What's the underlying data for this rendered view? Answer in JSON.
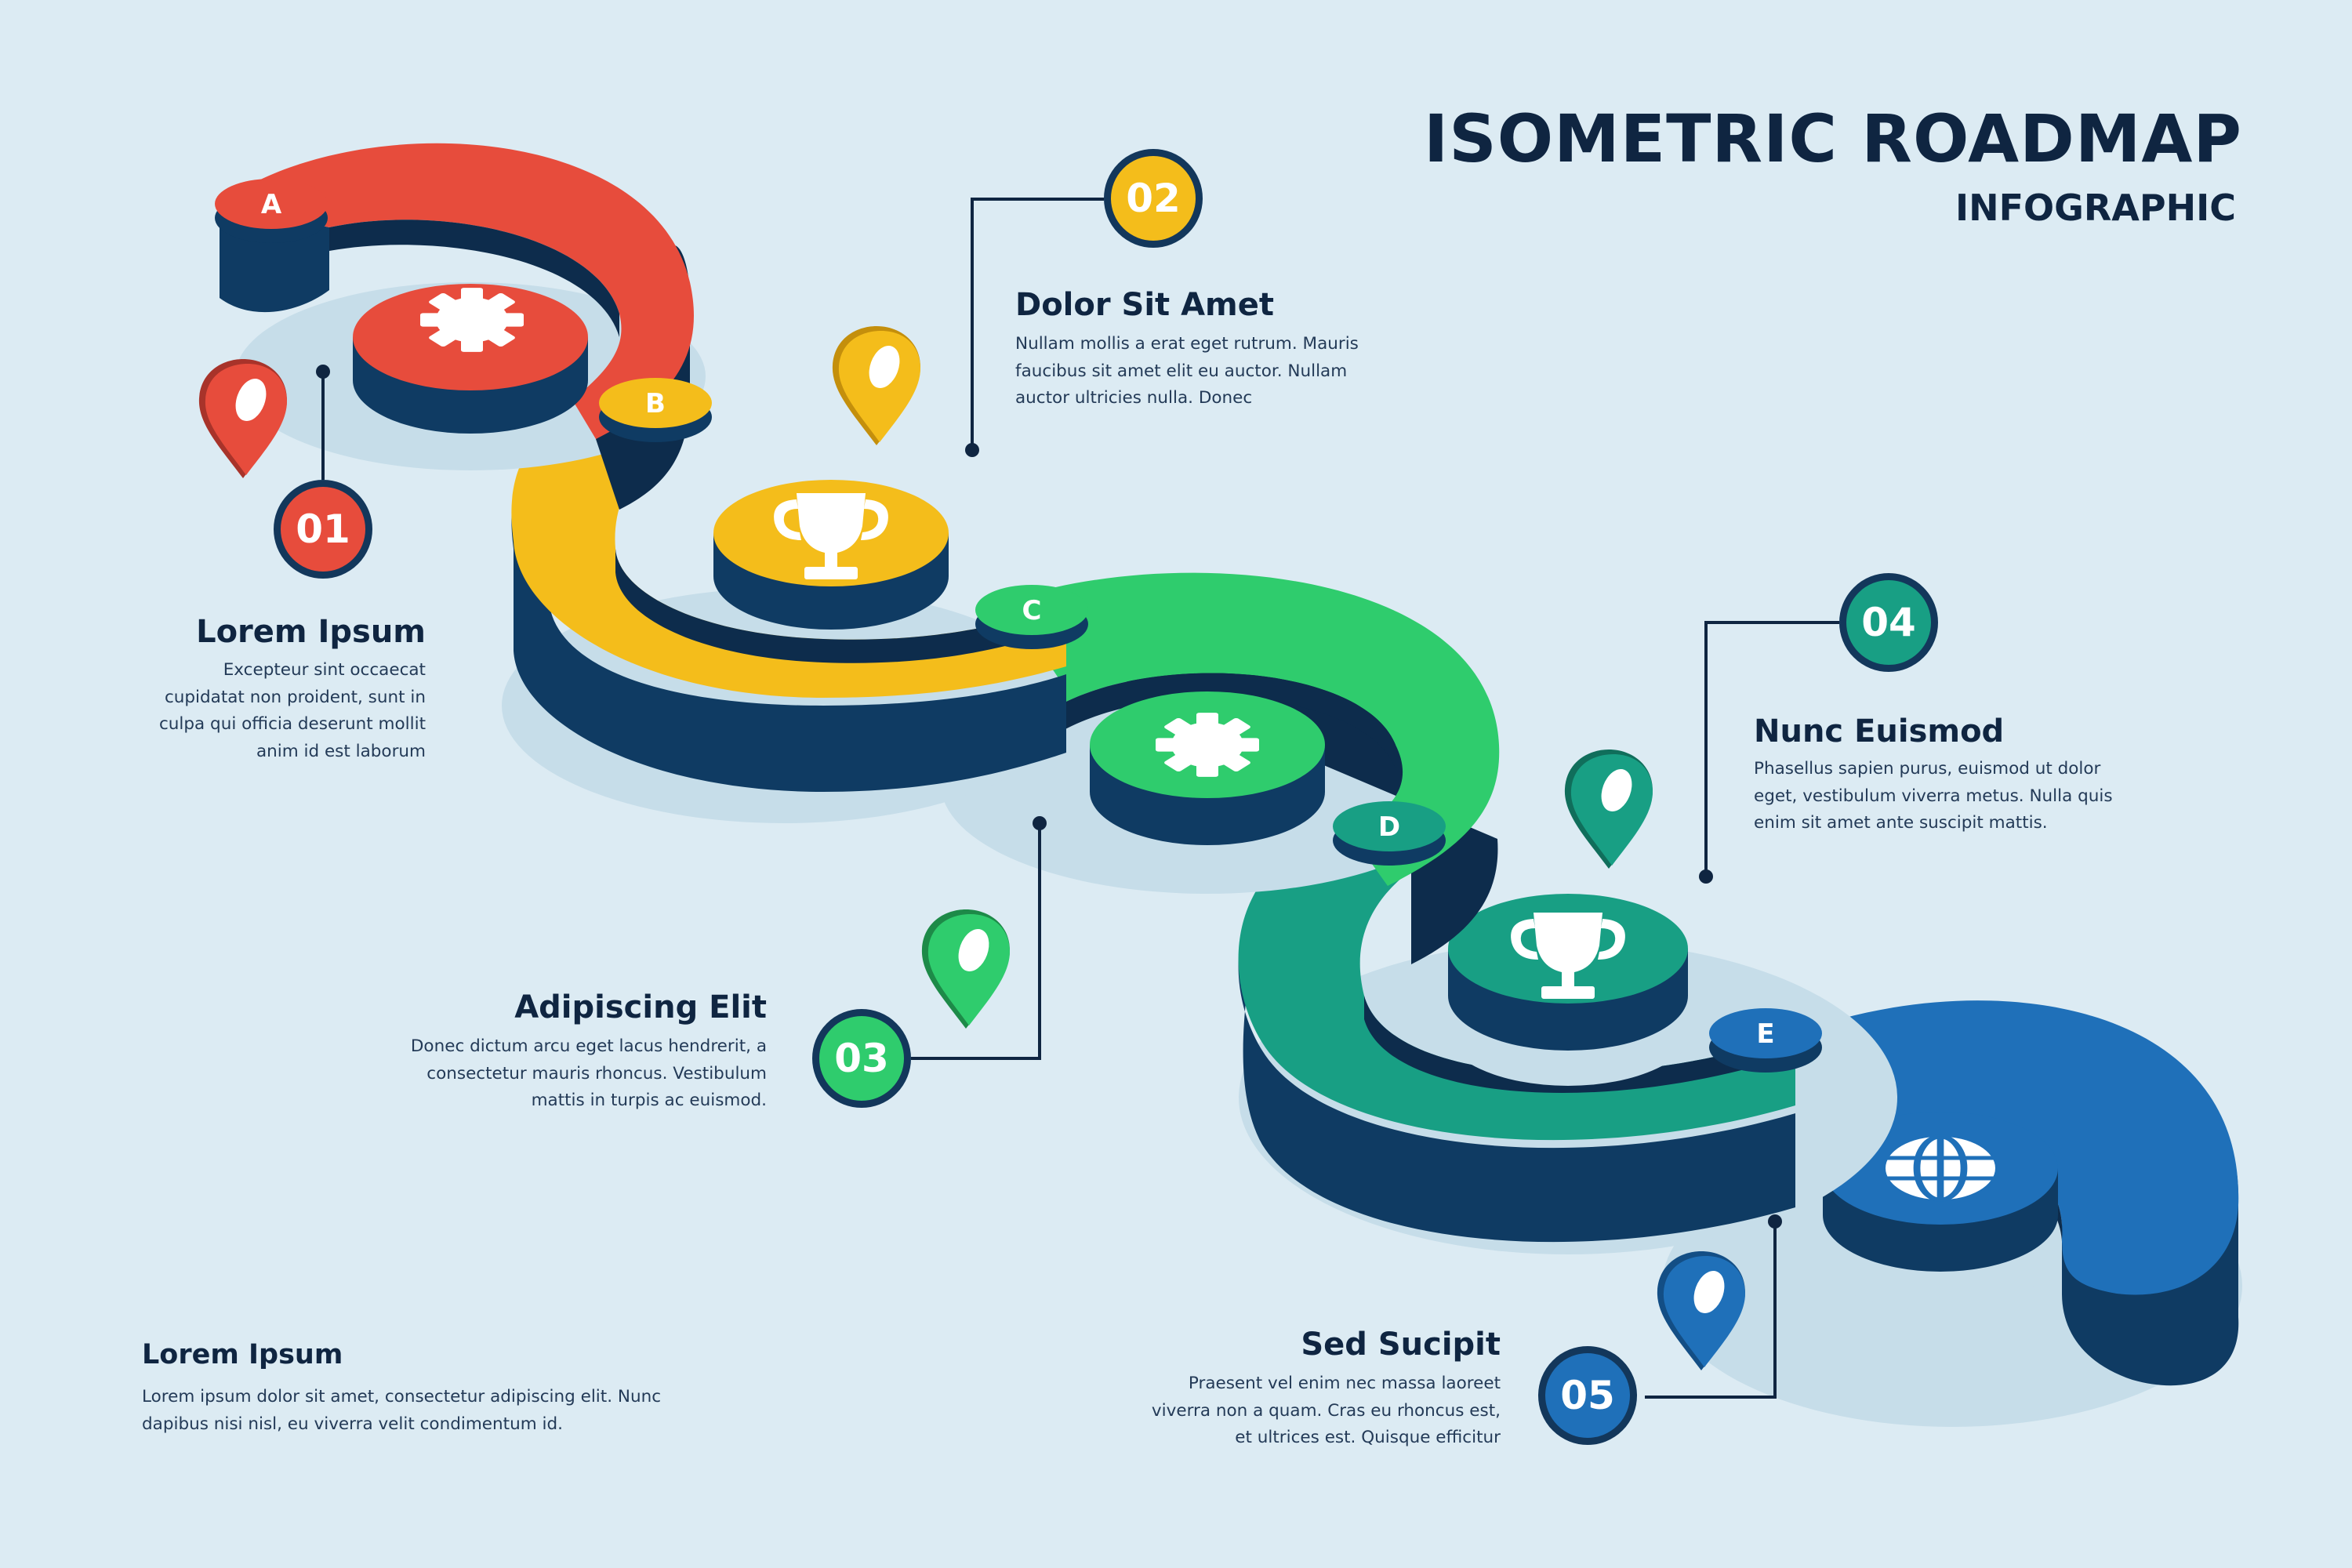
{
  "header": {
    "title": "ISOMETRIC ROADMAP",
    "subtitle": "INFOGRAPHIC"
  },
  "colors": {
    "background": "#dcebf3",
    "navy": "#0f2541",
    "red": "#e74c3c",
    "yellow": "#f4bd1b",
    "green": "#2fcc6d",
    "teal": "#189f84",
    "blue": "#1f70b9"
  },
  "segments": [
    {
      "letter": "A",
      "icon": "gear-icon"
    },
    {
      "letter": "B",
      "icon": "trophy-icon"
    },
    {
      "letter": "C",
      "icon": "gear-icon"
    },
    {
      "letter": "D",
      "icon": "trophy-icon"
    },
    {
      "letter": "E",
      "icon": "globe-icon"
    }
  ],
  "steps": [
    {
      "number": "01",
      "heading": "Lorem Ipsum",
      "lines": [
        "Excepteur sint occaecat",
        "cupidatat non proident, sunt in",
        "culpa qui officia deserunt mollit",
        "anim id est laborum"
      ]
    },
    {
      "number": "02",
      "heading": "Dolor Sit Amet",
      "lines": [
        "Nullam mollis a erat eget rutrum. Mauris",
        "faucibus sit amet elit eu auctor. Nullam",
        "auctor ultricies nulla. Donec"
      ]
    },
    {
      "number": "03",
      "heading": "Adipiscing Elit",
      "lines": [
        "Donec dictum arcu eget lacus hendrerit, a",
        "consectetur mauris rhoncus. Vestibulum",
        "mattis in turpis ac euismod."
      ]
    },
    {
      "number": "04",
      "heading": "Nunc Euismod",
      "lines": [
        "Phasellus sapien purus, euismod ut dolor",
        "eget, vestibulum viverra metus. Nulla quis",
        "enim sit amet ante suscipit mattis."
      ]
    },
    {
      "number": "05",
      "heading": "Sed Sucipit",
      "lines": [
        "Praesent vel enim nec massa laoreet",
        "viverra non a quam. Cras eu rhoncus est,",
        "et ultrices est. Quisque efficitur"
      ]
    }
  ],
  "footer": {
    "heading": "Lorem Ipsum",
    "lines": [
      "Lorem ipsum dolor sit amet, consectetur adipiscing elit. Nunc",
      "dapibus nisi nisl, eu viverra velit condimentum id."
    ]
  }
}
